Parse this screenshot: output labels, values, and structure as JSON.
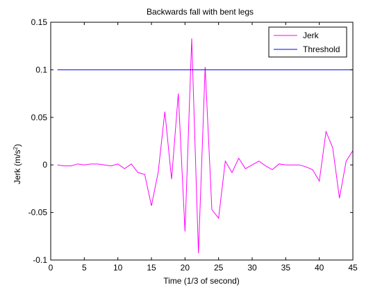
{
  "chart_data": {
    "type": "line",
    "title": "Backwards fall with bent legs",
    "xlabel": "Time (1/3 of second)",
    "ylabel_main": "Jerk (m/s",
    "ylabel_sup": "2",
    "ylabel_end": ")",
    "xlim": [
      0,
      45
    ],
    "ylim": [
      -0.1,
      0.15
    ],
    "xticks": [
      0,
      5,
      10,
      15,
      20,
      25,
      30,
      35,
      40,
      45
    ],
    "yticks": [
      -0.1,
      -0.05,
      0,
      0.05,
      0.1,
      0.15
    ],
    "ytick_labels": [
      "-0.1",
      "-0.05",
      "0",
      "0.05",
      "0.1",
      "0.15"
    ],
    "legend_position": "top-right",
    "grid": false,
    "series": [
      {
        "name": "Jerk",
        "color": "#ff00ff",
        "x": [
          1,
          2,
          3,
          4,
          5,
          6,
          7,
          8,
          9,
          10,
          11,
          12,
          13,
          14,
          15,
          16,
          17,
          18,
          19,
          20,
          21,
          22,
          23,
          24,
          25,
          26,
          27,
          28,
          29,
          30,
          31,
          32,
          33,
          34,
          35,
          36,
          37,
          38,
          39,
          40,
          41,
          42,
          43,
          44,
          45
        ],
        "y": [
          0,
          -0.001,
          -0.001,
          0.001,
          0,
          0.001,
          0.001,
          0,
          -0.001,
          0.001,
          -0.004,
          0.001,
          -0.008,
          -0.01,
          -0.043,
          -0.008,
          0.056,
          -0.015,
          0.075,
          -0.07,
          0.133,
          -0.093,
          0.103,
          -0.047,
          -0.056,
          0.004,
          -0.008,
          0.007,
          -0.004,
          0,
          0.004,
          -0.001,
          -0.005,
          0.001,
          0,
          0,
          0,
          -0.002,
          -0.005,
          -0.017,
          0.035,
          0.018,
          -0.035,
          0.004,
          0.015
        ]
      },
      {
        "name": "Threshold",
        "color": "#0000ff",
        "x": [
          1,
          45
        ],
        "y": [
          0.1,
          0.1
        ]
      }
    ]
  }
}
